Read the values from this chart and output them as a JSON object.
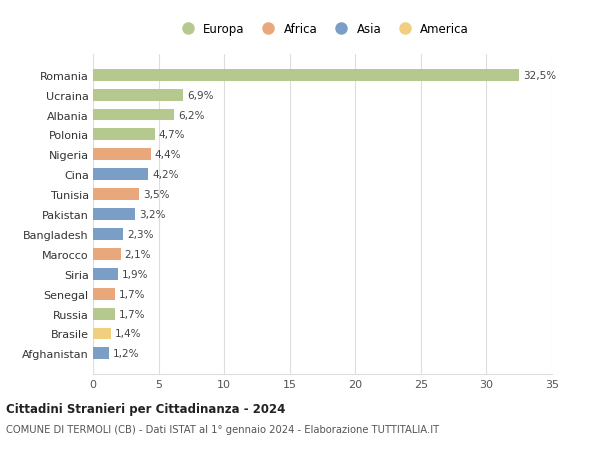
{
  "countries": [
    "Romania",
    "Ucraina",
    "Albania",
    "Polonia",
    "Nigeria",
    "Cina",
    "Tunisia",
    "Pakistan",
    "Bangladesh",
    "Marocco",
    "Siria",
    "Senegal",
    "Russia",
    "Brasile",
    "Afghanistan"
  ],
  "values": [
    32.5,
    6.9,
    6.2,
    4.7,
    4.4,
    4.2,
    3.5,
    3.2,
    2.3,
    2.1,
    1.9,
    1.7,
    1.7,
    1.4,
    1.2
  ],
  "labels": [
    "32,5%",
    "6,9%",
    "6,2%",
    "4,7%",
    "4,4%",
    "4,2%",
    "3,5%",
    "3,2%",
    "2,3%",
    "2,1%",
    "1,9%",
    "1,7%",
    "1,7%",
    "1,4%",
    "1,2%"
  ],
  "continents": [
    "Europa",
    "Europa",
    "Europa",
    "Europa",
    "Africa",
    "Asia",
    "Africa",
    "Asia",
    "Asia",
    "Africa",
    "Asia",
    "Africa",
    "Europa",
    "America",
    "Asia"
  ],
  "colors": {
    "Europa": "#b5c98e",
    "Africa": "#e8a87c",
    "Asia": "#7b9ec7",
    "America": "#f0d080"
  },
  "background_color": "#ffffff",
  "title": "Cittadini Stranieri per Cittadinanza - 2024",
  "subtitle": "COMUNE DI TERMOLI (CB) - Dati ISTAT al 1° gennaio 2024 - Elaborazione TUTTITALIA.IT",
  "xlim": [
    0,
    35
  ],
  "xticks": [
    0,
    5,
    10,
    15,
    20,
    25,
    30,
    35
  ],
  "grid_color": "#dddddd",
  "legend_order": [
    "Europa",
    "Africa",
    "Asia",
    "America"
  ]
}
